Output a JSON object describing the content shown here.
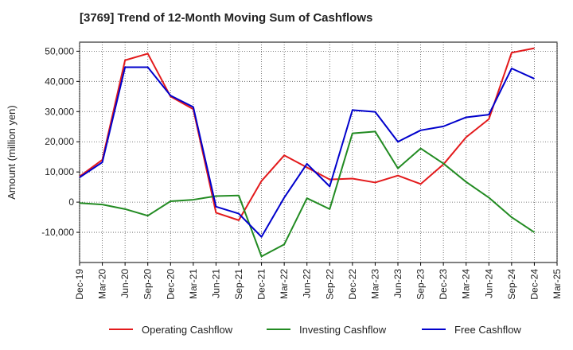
{
  "chart_data": {
    "type": "line",
    "title": "[3769]  Trend of 12-Month Moving Sum of Cashflows",
    "xlabel": "",
    "ylabel": "Amount (million yen)",
    "x": [
      "Dec-19",
      "Mar-20",
      "Jun-20",
      "Sep-20",
      "Dec-20",
      "Mar-21",
      "Jun-21",
      "Sep-21",
      "Dec-21",
      "Mar-22",
      "Jun-22",
      "Sep-22",
      "Dec-22",
      "Mar-23",
      "Jun-23",
      "Sep-23",
      "Dec-23",
      "Mar-24",
      "Jun-24",
      "Sep-24",
      "Dec-24",
      "Mar-25"
    ],
    "ylim": [
      -20000,
      53000
    ],
    "yticks": [
      -10000,
      0,
      10000,
      20000,
      30000,
      40000,
      50000
    ],
    "ytick_labels": [
      "-10,000",
      "0",
      "10,000",
      "20,000",
      "30,000",
      "40,000",
      "50,000"
    ],
    "grid": true,
    "legend_position": "bottom",
    "series": [
      {
        "name": "Operating Cashflow",
        "color": "#e31a1c",
        "values": [
          8500,
          14000,
          47000,
          49200,
          35000,
          30800,
          -3500,
          -6000,
          7000,
          15500,
          11500,
          7500,
          7800,
          6500,
          8800,
          6000,
          12500,
          21500,
          27500,
          49500,
          51000,
          null
        ]
      },
      {
        "name": "Investing Cashflow",
        "color": "#228b22",
        "values": [
          -300,
          -800,
          -2300,
          -4500,
          300,
          800,
          2000,
          2200,
          -18000,
          -14000,
          1300,
          -2300,
          22800,
          23400,
          11200,
          17800,
          12800,
          6700,
          1500,
          -5000,
          -10000,
          null
        ]
      },
      {
        "name": "Free Cashflow",
        "color": "#0000cc",
        "values": [
          8200,
          13200,
          44700,
          44700,
          35300,
          31500,
          -1500,
          -3800,
          -11500,
          1500,
          12700,
          5200,
          30500,
          29900,
          20000,
          23800,
          25100,
          28100,
          29000,
          44300,
          40900,
          null
        ]
      }
    ]
  }
}
